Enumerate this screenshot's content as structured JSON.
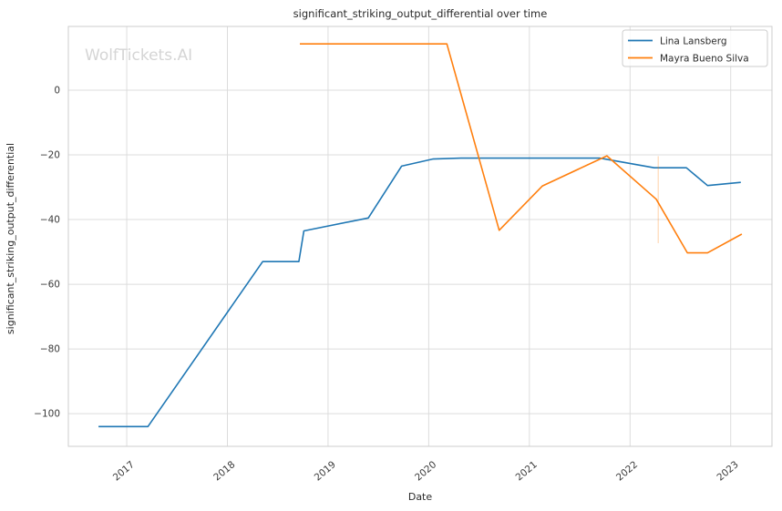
{
  "figure": {
    "title": "significant_striking_output_differential over time",
    "watermark": "WolfTickets.AI",
    "xlabel": "Date",
    "ylabel": "significant_striking_output_differential"
  },
  "colors": {
    "grid": "#dcdcdc",
    "spine": "#cccccc",
    "tick_text": "#3a3a3a",
    "title_text": "#2b2b2b",
    "watermark": "#d5d5d5",
    "legend_border": "#cccccc",
    "series_blue": "#1f77b4",
    "series_orange": "#ff7f0e"
  },
  "chart_data": {
    "type": "line",
    "title": "significant_striking_output_differential over time",
    "xlabel": "Date",
    "ylabel": "significant_striking_output_differential",
    "watermark": "WolfTickets.AI",
    "grid": true,
    "legend_position": "upper right",
    "xlim": [
      2016.42,
      2023.41
    ],
    "ylim": [
      -110.1,
      19.7
    ],
    "x_ticks": [
      2017,
      2018,
      2019,
      2020,
      2021,
      2022,
      2023
    ],
    "x_tick_labels": [
      "2017",
      "2018",
      "2019",
      "2020",
      "2021",
      "2022",
      "2023"
    ],
    "y_ticks": [
      0,
      -20,
      -40,
      -60,
      -80,
      -100
    ],
    "y_tick_labels": [
      "0",
      "−20",
      "−40",
      "−60",
      "−80",
      "−100"
    ],
    "series": [
      {
        "name": "Lina Lansberg",
        "color": "#1f77b4",
        "points": [
          [
            2016.72,
            -104
          ],
          [
            2017.21,
            -104
          ],
          [
            2018.35,
            -53
          ],
          [
            2018.71,
            -53
          ],
          [
            2018.76,
            -43.5
          ],
          [
            2019.4,
            -39.5
          ],
          [
            2019.73,
            -23.5
          ],
          [
            2020.04,
            -21.3
          ],
          [
            2020.32,
            -21
          ],
          [
            2021.7,
            -21
          ],
          [
            2022.24,
            -24
          ],
          [
            2022.56,
            -24
          ],
          [
            2022.77,
            -29.5
          ],
          [
            2023.1,
            -28.5
          ]
        ]
      },
      {
        "name": "Mayra Bueno Silva",
        "color": "#ff7f0e",
        "points": [
          [
            2018.72,
            14.3
          ],
          [
            2020.18,
            14.3
          ],
          [
            2020.7,
            -43.3
          ],
          [
            2021.13,
            -29.6
          ],
          [
            2021.77,
            -20.3
          ],
          [
            2022.26,
            -33.7
          ],
          [
            2022.57,
            -50.3
          ],
          [
            2022.77,
            -50.3
          ],
          [
            2023.11,
            -44.5
          ]
        ]
      }
    ],
    "event_marker": {
      "x": 2022.28,
      "y_from": -20.4,
      "y_to": -47.3,
      "color": "#ff7f0e",
      "opacity": 0.3
    }
  }
}
